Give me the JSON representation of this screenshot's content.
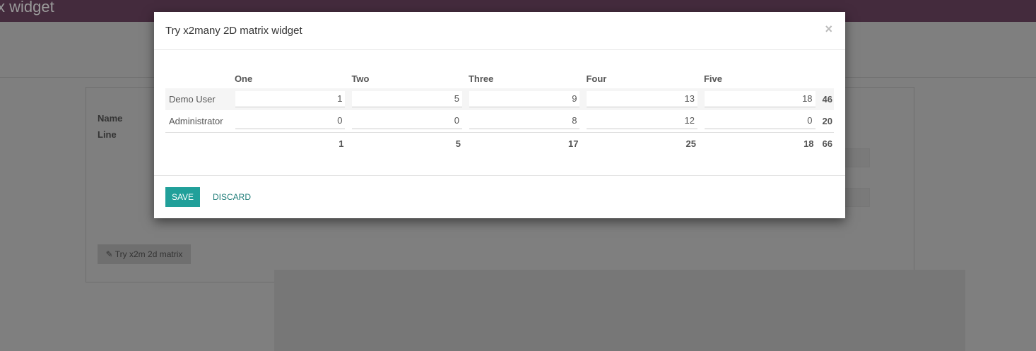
{
  "app": {
    "title": "x widget",
    "name_label": "Name",
    "line_label": "Line",
    "try_button": "Try x2m 2d matrix"
  },
  "modal": {
    "title": "Try x2many 2D matrix widget",
    "close": "×",
    "columns": [
      "One",
      "Two",
      "Three",
      "Four",
      "Five"
    ],
    "rows": [
      {
        "label": "Demo User",
        "values": [
          "1",
          "5",
          "9",
          "13",
          "18"
        ],
        "total": "46"
      },
      {
        "label": "Administrator",
        "values": [
          "0",
          "0",
          "8",
          "12",
          "0"
        ],
        "total": "20"
      }
    ],
    "totals": [
      "1",
      "5",
      "17",
      "25",
      "18"
    ],
    "grand_total": "66",
    "save": "SAVE",
    "discard": "DISCARD"
  },
  "colors": {
    "accent": "#21a09a",
    "header": "#442b3d"
  }
}
